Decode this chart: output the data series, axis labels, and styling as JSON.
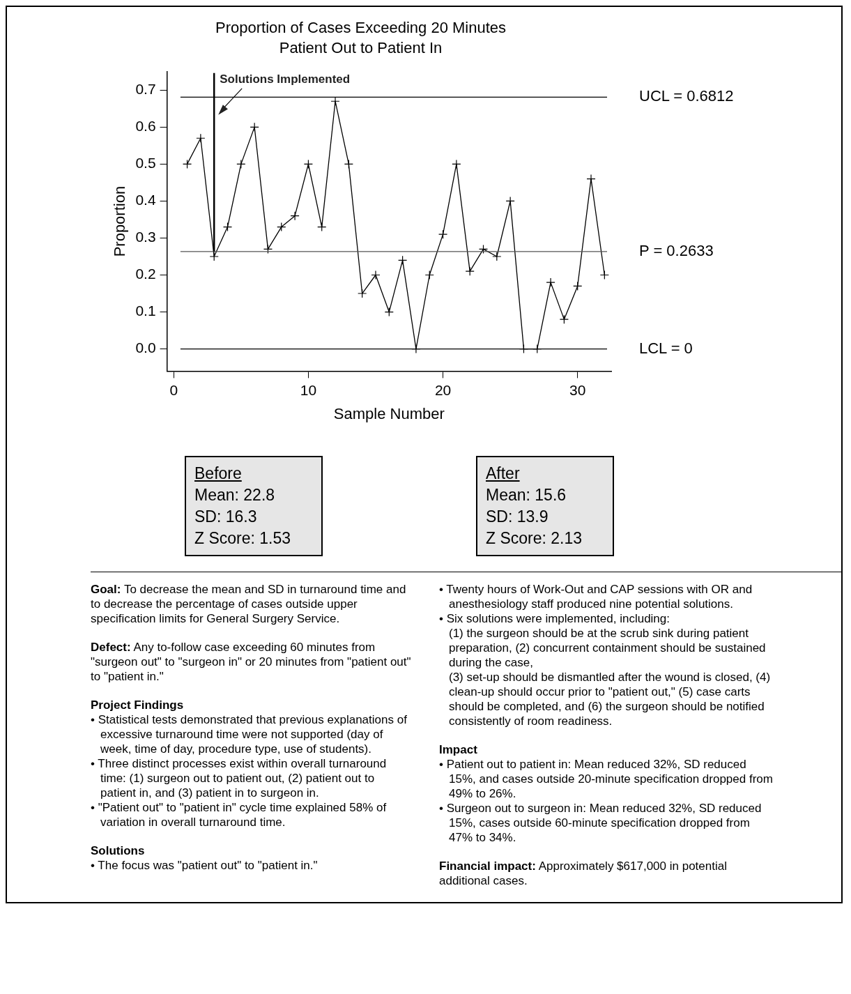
{
  "chart_data": {
    "type": "line",
    "title": "Proportion of Cases Exceeding 20 Minutes",
    "subtitle": "Patient Out to Patient In",
    "xlabel": "Sample Number",
    "ylabel": "Proportion",
    "x": [
      1,
      2,
      3,
      4,
      5,
      6,
      7,
      8,
      9,
      10,
      11,
      12,
      13,
      14,
      15,
      16,
      17,
      18,
      19,
      20,
      21,
      22,
      23,
      24,
      25,
      26,
      27,
      28,
      29,
      30,
      31,
      32
    ],
    "series": [
      {
        "color": "#000000",
        "values": [
          0.5,
          0.57,
          0.25,
          0.33,
          0.5,
          0.6,
          0.27,
          0.33,
          0.36,
          0.5,
          0.33,
          0.67,
          0.5,
          0.15,
          0.2,
          0.1,
          0.24,
          0,
          0.2,
          0.31,
          0.5,
          0.21,
          0.27,
          0.25,
          0.4,
          0,
          0,
          0.18,
          0.08,
          0.17,
          0.46,
          0.2
        ]
      }
    ],
    "xlim": [
      -0.5,
      32.5
    ],
    "xticks": [
      0,
      10,
      20,
      30
    ],
    "ylim": [
      -0.06,
      0.75
    ],
    "yticks": [
      {
        "value": 0,
        "label": "0.0"
      },
      {
        "value": 0.1,
        "label": "0.1"
      },
      {
        "value": 0.2,
        "label": "0.2"
      },
      {
        "value": 0.3,
        "label": "0.3"
      },
      {
        "value": 0.4,
        "label": "0.4"
      },
      {
        "value": 0.5,
        "label": "0.5"
      },
      {
        "value": 0.6,
        "label": "0.6"
      },
      {
        "value": 0.7,
        "label": "0.7"
      }
    ],
    "ref_lines": [
      {
        "axis": "y",
        "value": 0.6812,
        "label": "UCL = 0.6812",
        "color": "#000000"
      },
      {
        "axis": "y",
        "value": 0.2633,
        "label": "P = 0.2633",
        "color": "#555555"
      },
      {
        "axis": "y",
        "value": 0,
        "label": "LCL = 0",
        "color": "#000000"
      },
      {
        "axis": "x",
        "value": 3,
        "label": "Solutions Implemented",
        "color": "#000000"
      }
    ],
    "grid": false,
    "legend": false,
    "marker": "cross",
    "line_style": "solid",
    "annotations": [
      "Before\nMean: 22.8\nSD: 16.3\nZ Score: 1.53",
      "After\nMean: 15.6\nSD: 13.9\nZ Score: 2.13",
      "Goal:",
      "To decrease the mean and SD in turnaround time and to decrease the percentage of cases outside upper specification limits for General Surgery Service.",
      "Defect:",
      "Any to-follow case exceeding 60 minutes from \"surgeon out\" to \"surgeon in\" or 20 minutes from \"patient out\" to \"patient in.\"",
      "Project Findings",
      "• Statistical tests demonstrated that previous explanations of excessive turnaround time were not supported (day of week, time of day, procedure type, use of students).",
      "• Three distinct processes exist within overall turnaround time: (1) surgeon out to patient out, (2) patient out to patient in, and (3) patient in to surgeon in.",
      "• \"Patient out\" to \"patient in\" cycle time explained 58% of variation in overall turnaround time.",
      "Solutions",
      "• The focus was \"patient out\" to \"patient in.\"",
      "• Twenty hours of Work-Out and CAP sessions with OR and anesthesiology staff produced nine potential solutions.",
      "• Six solutions were implemented, including:\n(1) the surgeon should be at the scrub sink during patient preparation, (2) concurrent containment should be sustained during the case,\n(3) set-up should be dismantled after the wound is closed, (4) clean-up should occur prior to \"patient out,\" (5) case carts should be completed, and (6) the surgeon should be notified consistently of room readiness.",
      "Impact",
      "• Patient out to patient in: Mean reduced 32%, SD reduced 15%, and cases outside 20-minute specification dropped from 49% to 26%.",
      "• Surgeon out to surgeon in: Mean reduced 32%, SD reduced 15%, cases outside 60-minute specification dropped from 47% to 34%.",
      "Financial impact:",
      "Approximately $617,000 in potential additional cases."
    ]
  }
}
